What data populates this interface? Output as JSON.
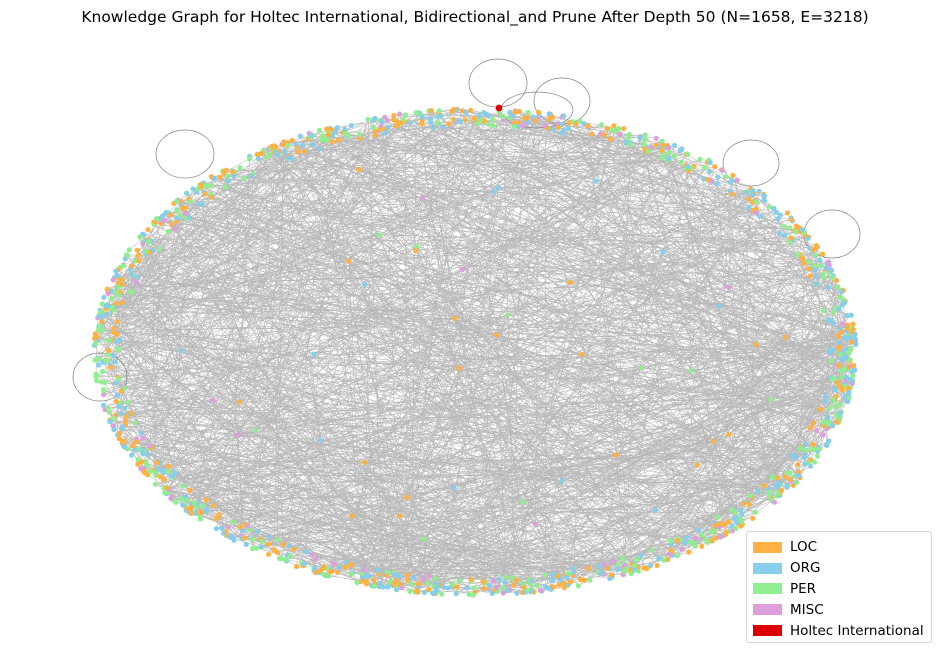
{
  "title": "Knowledge Graph for Holtec International, Bidirectional_and Prune After Depth 50 (N=1658, E=3218)",
  "edge_color": "#808080",
  "legend": [
    {
      "label": "LOC",
      "color": "#ffb142"
    },
    {
      "label": "ORG",
      "color": "#87ceeb"
    },
    {
      "label": "PER",
      "color": "#90ee90"
    },
    {
      "label": "MISC",
      "color": "#dda0dd"
    },
    {
      "label": "Holtec International",
      "color": "#dd0000"
    }
  ],
  "chart_data": {
    "type": "network",
    "title": "Knowledge Graph for Holtec International, Bidirectional_and Prune After Depth 50 (N=1658, E=3218)",
    "node_count": 1658,
    "edge_count": 3218,
    "layout": "circular ring with sparse interior nodes",
    "center_node": "Holtec International",
    "categories": [
      "LOC",
      "ORG",
      "PER",
      "MISC",
      "Holtec International"
    ],
    "legend_position": "bottom-right",
    "self_loops_visible": 7
  }
}
